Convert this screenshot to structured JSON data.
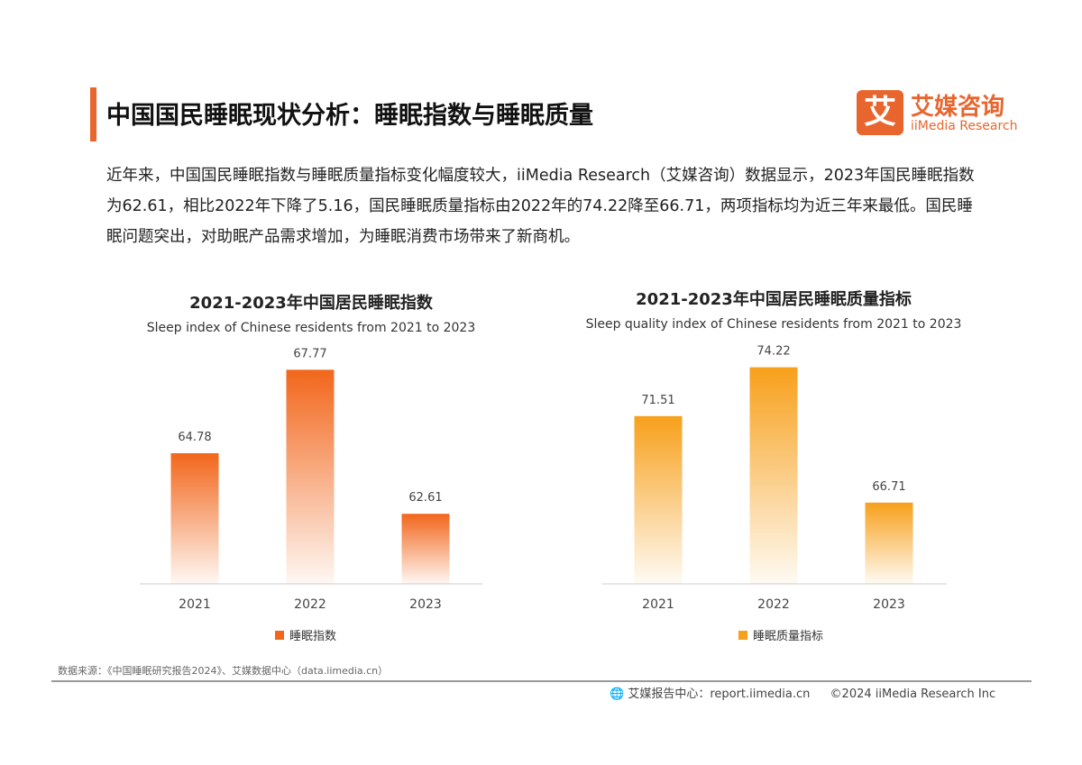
{
  "header": {
    "title": "中国国民睡眠现状分析：睡眠指数与睡眠质量",
    "logo_mark": "艾",
    "logo_cn": "艾媒咨询",
    "logo_en": "iiMedia Research"
  },
  "paragraph": "近年来，中国国民睡眠指数与睡眠质量指标变化幅度较大，iiMedia Research（艾媒咨询）数据显示，2023年国民睡眠指数为62.61，相比2022年下降了5.16，国民睡眠质量指标由2022年的74.22降至66.71，两项指标均为近三年来最低。国民睡眠问题突出，对助眠产品需求增加，为睡眠消费市场带来了新商机。",
  "chart_data": [
    {
      "type": "bar",
      "title": "2021-2023年中国居民睡眠指数",
      "subtitle": "Sleep index of Chinese residents from 2021 to 2023",
      "categories": [
        "2021",
        "2022",
        "2023"
      ],
      "series": [
        {
          "name": "睡眠指数",
          "values": [
            64.78,
            67.77,
            62.61
          ]
        }
      ],
      "ylim": [
        60.1,
        68.75
      ],
      "color": "#f2661b",
      "legend": "bottom",
      "grid": false
    },
    {
      "type": "bar",
      "title": "2021-2023年中国居民睡眠质量指标",
      "subtitle": "Sleep quality index of Chinese residents from 2021 to 2023",
      "categories": [
        "2021",
        "2022",
        "2023"
      ],
      "series": [
        {
          "name": "睡眠质量指标",
          "values": [
            71.51,
            74.22,
            66.71
          ]
        }
      ],
      "ylim": [
        62.2,
        75.6
      ],
      "color": "#f7a01b",
      "legend": "bottom",
      "grid": false
    }
  ],
  "footer": {
    "source": "数据来源：《中国睡眠研究报告2024》、艾媒数据中心（data.iimedia.cn）",
    "report": "艾媒报告中心：report.iimedia.cn",
    "copyright": "©2024  iiMedia Research Inc"
  }
}
